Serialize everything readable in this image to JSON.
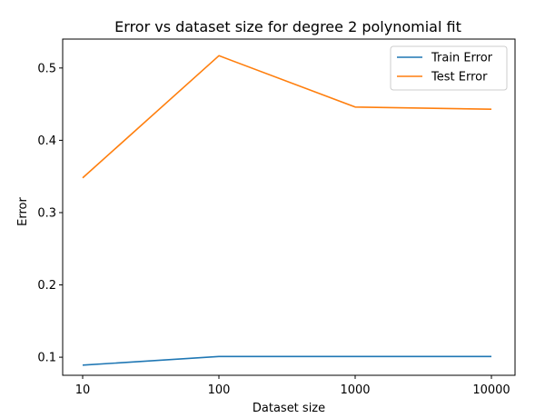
{
  "chart_data": {
    "type": "line",
    "title": "Error vs dataset size for degree 2 polynomial fit",
    "xlabel": "Dataset size",
    "ylabel": "Error",
    "categories": [
      "10",
      "100",
      "1000",
      "10000"
    ],
    "x": [
      10,
      100,
      1000,
      10000
    ],
    "xscale": "log",
    "ylim": [
      0.075,
      0.54
    ],
    "yticks": [
      0.1,
      0.2,
      0.3,
      0.4,
      0.5
    ],
    "ytick_labels": [
      "0.1",
      "0.2",
      "0.3",
      "0.4",
      "0.5"
    ],
    "grid": false,
    "legend_position": "top-right",
    "series": [
      {
        "name": "Train Error",
        "color": "#1f77b4",
        "values": [
          0.089,
          0.101,
          0.101,
          0.101
        ]
      },
      {
        "name": "Test Error",
        "color": "#ff7f0e",
        "values": [
          0.348,
          0.517,
          0.446,
          0.443
        ]
      }
    ]
  }
}
